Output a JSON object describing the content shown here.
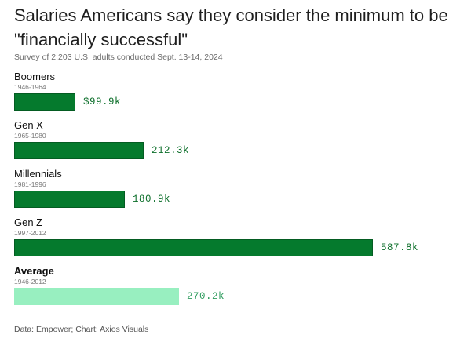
{
  "header": {
    "title": "Salaries Americans say they consider the minimum to be \"financially successful\"",
    "subtitle": "Survey of 2,203 U.S. adults conducted Sept. 13-14, 2024"
  },
  "footer": {
    "source": "Data: Empower; Chart: Axios Visuals"
  },
  "colors": {
    "bar_dark": "#057a2d",
    "bar_light": "#98efc0",
    "label_dark": "#0d6f2b",
    "label_light": "#2f9c5e"
  },
  "chart_data": {
    "type": "bar",
    "orientation": "horizontal",
    "title": "Salaries Americans say they consider the minimum to be \"financially successful\"",
    "subtitle": "Survey of 2,203 U.S. adults conducted Sept. 13-14, 2024",
    "unit": "thousand USD",
    "categories": [
      "Boomers",
      "Gen X",
      "Millennials",
      "Gen Z",
      "Average"
    ],
    "category_years": [
      "1946-1964",
      "1965-1980",
      "1981-1996",
      "1997-2012",
      "1946-2012"
    ],
    "values": [
      99.9,
      212.3,
      180.9,
      587.8,
      270.2
    ],
    "value_labels": [
      "$99.9k",
      "212.3k",
      "180.9k",
      "587.8k",
      "270.2k"
    ],
    "highlight": [
      false,
      false,
      false,
      false,
      true
    ],
    "xlim": [
      0,
      587.8
    ],
    "grid": false,
    "legend": "none"
  }
}
